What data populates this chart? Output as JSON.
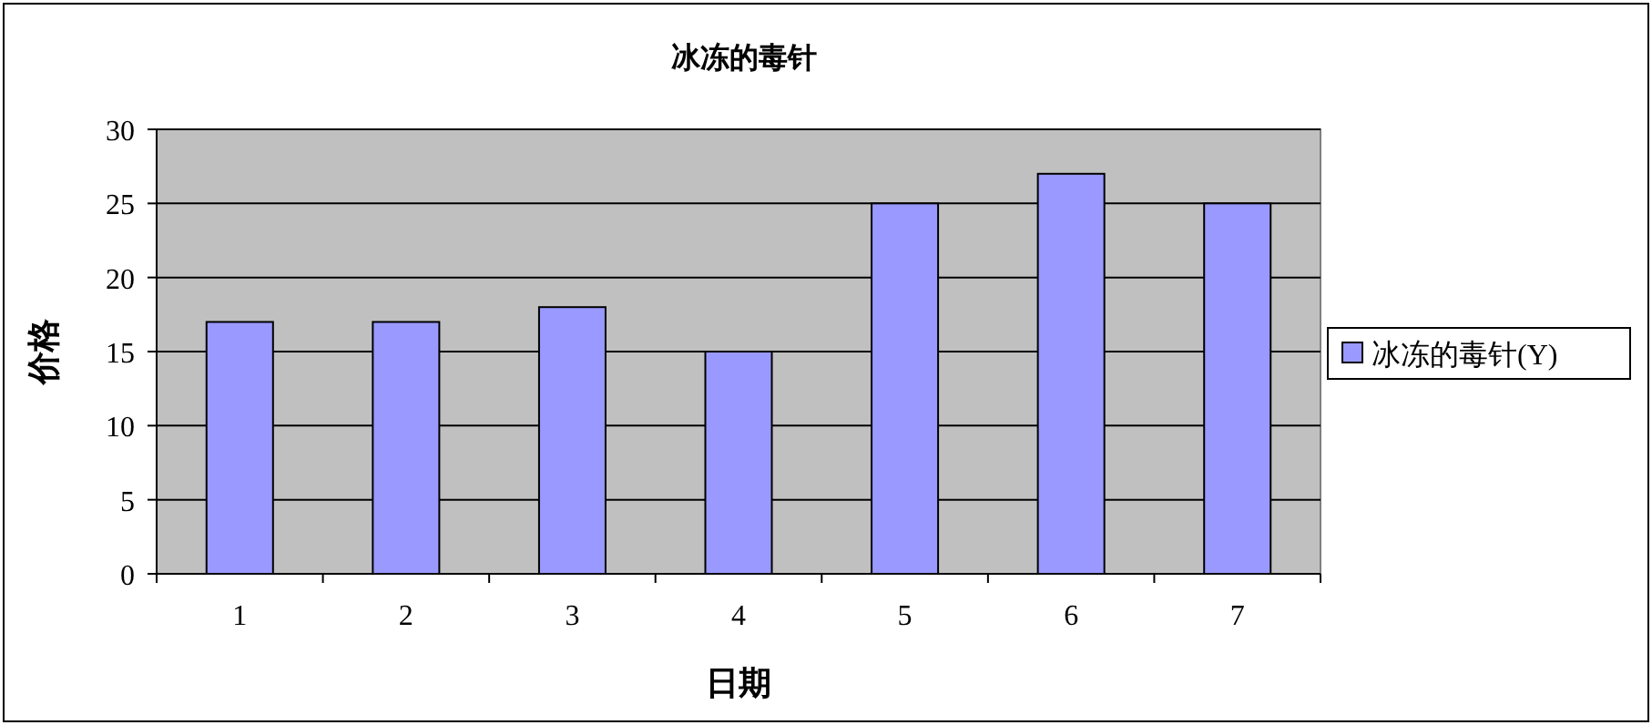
{
  "chart_data": {
    "type": "bar",
    "title": "冰冻的毒针",
    "xlabel": "日期",
    "ylabel": "价格",
    "categories": [
      "1",
      "2",
      "3",
      "4",
      "5",
      "6",
      "7"
    ],
    "series": [
      {
        "name": "冰冻的毒针(Y)",
        "color": "#9999ff",
        "values": [
          17,
          17,
          18,
          15,
          25,
          27,
          25
        ]
      }
    ],
    "ylim": [
      0,
      30
    ],
    "yticks": [
      0,
      5,
      10,
      15,
      20,
      25,
      30
    ],
    "grid": "y",
    "legend": "right"
  }
}
